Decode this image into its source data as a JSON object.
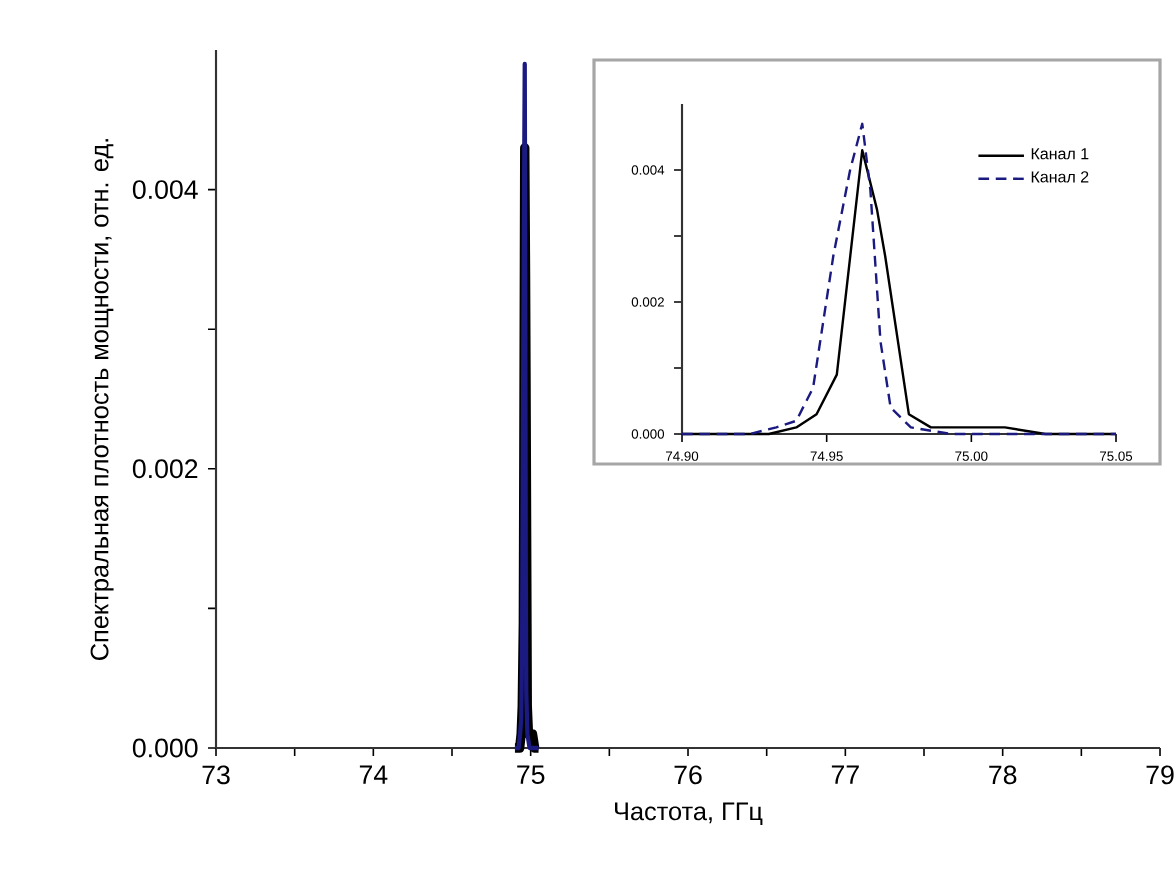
{
  "chart_data": [
    {
      "type": "line",
      "xlabel": "Частота, ГГц",
      "ylabel": "Спектральная плотность мощности, отн. ед.",
      "xlim": [
        73,
        79
      ],
      "ylim": [
        0,
        0.005
      ],
      "xticks": [
        73,
        {
          "value": 73.5,
          "label": null
        },
        74,
        {
          "value": 74.5,
          "label": null
        },
        75,
        {
          "value": 75.5,
          "label": null
        },
        76,
        {
          "value": 76.5,
          "label": null
        },
        77,
        {
          "value": 77.5,
          "label": null
        },
        78,
        {
          "value": 78.5,
          "label": null
        },
        79
      ],
      "yticks": [
        {
          "value": 0,
          "label": "0.000"
        },
        {
          "value": 0.001,
          "label": null
        },
        {
          "value": 0.002,
          "label": "0.002"
        },
        {
          "value": 0.003,
          "label": null
        },
        {
          "value": 0.004,
          "label": "0.004"
        }
      ],
      "grid": false,
      "legend": false,
      "marker": "none",
      "series": [
        {
          "color": "#000000",
          "line_style": "solid",
          "x": [
            74.9,
            74.93,
            74.9395,
            74.9465,
            74.9535,
            74.9623,
            74.9674,
            74.9702,
            74.9784,
            74.986,
            74.9953,
            75.0116,
            75.0256,
            75.05
          ],
          "values": [
            0,
            0,
            0.0001,
            0.0003,
            0.0009,
            0.0043,
            0.0034,
            0.0027,
            0.0003,
            0.0001,
            0.0001,
            0.0001,
            0,
            0
          ]
        },
        {
          "color": "#1a1a80",
          "line_style": "solid",
          "x": [
            74.9,
            74.9233,
            74.9326,
            74.9395,
            74.9453,
            74.9523,
            74.9581,
            74.9623,
            74.9651,
            74.9686,
            74.9721,
            74.9791,
            74.993,
            75.0256,
            75.05
          ],
          "values": [
            0,
            0,
            0.0001,
            0.0002,
            0.0007,
            0.0027,
            0.004,
            0.0049,
            0.0037,
            0.0014,
            0.0004,
            0.0001,
            0,
            0,
            0
          ]
        }
      ]
    },
    {
      "type": "line",
      "xlim": [
        74.9,
        75.05
      ],
      "ylim": [
        0,
        0.005
      ],
      "xticks": [
        {
          "value": 74.9,
          "label": "74.90"
        },
        {
          "value": 74.95,
          "label": "74.95"
        },
        {
          "value": 75.0,
          "label": "75.00"
        },
        {
          "value": 75.05,
          "label": "75.05"
        }
      ],
      "yticks": [
        {
          "value": 0,
          "label": "0.000"
        },
        {
          "value": 0.001,
          "label": null
        },
        {
          "value": 0.002,
          "label": "0.002"
        },
        {
          "value": 0.003,
          "label": null
        },
        {
          "value": 0.004,
          "label": "0.004"
        }
      ],
      "grid": false,
      "legend": "top right",
      "marker": "none",
      "series": [
        {
          "name": "Канал 1",
          "color": "#000000",
          "line_style": "solid",
          "x": [
            74.9,
            74.93,
            74.9395,
            74.9465,
            74.9535,
            74.9623,
            74.9674,
            74.9702,
            74.9784,
            74.986,
            74.9953,
            75.0116,
            75.0256,
            75.05
          ],
          "values": [
            0,
            0,
            0.0001,
            0.0003,
            0.0009,
            0.0043,
            0.0034,
            0.0027,
            0.0003,
            0.0001,
            0.0001,
            0.0001,
            0,
            0
          ]
        },
        {
          "name": "Канал 2",
          "color": "#1a1a80",
          "line_style": "dashed",
          "x": [
            74.9,
            74.9233,
            74.9326,
            74.9395,
            74.9453,
            74.9523,
            74.9581,
            74.9623,
            74.9651,
            74.9686,
            74.9721,
            74.9791,
            74.993,
            75.0256,
            75.05
          ],
          "values": [
            0,
            0,
            0.0001,
            0.0002,
            0.0007,
            0.0027,
            0.004,
            0.0047,
            0.0037,
            0.0014,
            0.0004,
            0.0001,
            0,
            0,
            0
          ]
        }
      ]
    }
  ]
}
